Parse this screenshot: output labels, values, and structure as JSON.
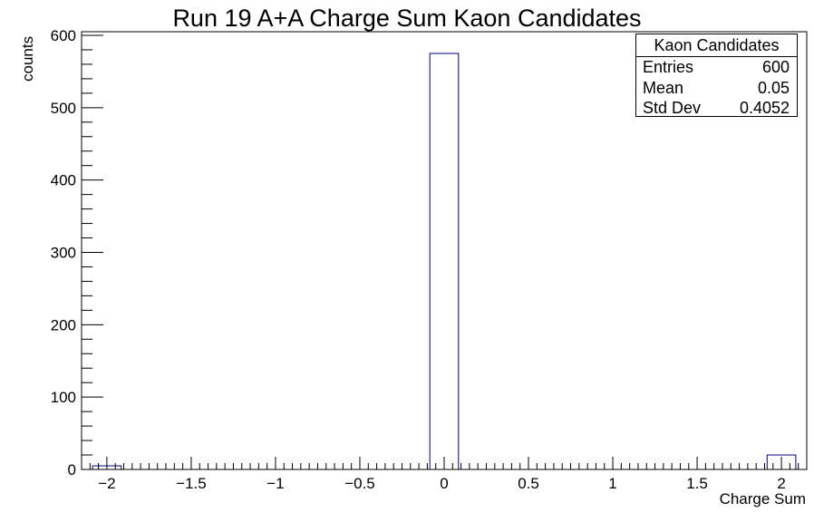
{
  "chart_data": {
    "type": "bar",
    "title": "Run 19 A+A Charge Sum Kaon Candidates",
    "xlabel": "Charge Sum",
    "ylabel": "counts",
    "xlim": [
      -2.15,
      2.15
    ],
    "ylim": [
      0,
      605
    ],
    "bin_width": 0.17,
    "x_tick_labels": [
      "-2",
      "-1.5",
      "-1",
      "-0.5",
      "0",
      "0.5",
      "1",
      "1.5",
      "2"
    ],
    "y_tick_labels": [
      "0",
      "100",
      "200",
      "300",
      "400",
      "500",
      "600"
    ],
    "series": [
      {
        "name": "Kaon Candidates",
        "x": [
          -2,
          0,
          2
        ],
        "values": [
          5,
          575,
          20
        ]
      }
    ],
    "grid": false,
    "bar_color": "#00007f",
    "bar_fill": "none"
  },
  "stats": {
    "title": "Kaon Candidates",
    "rows": [
      {
        "key": "Entries",
        "value": "600"
      },
      {
        "key": "Mean",
        "value": "0.05"
      },
      {
        "key": "Std Dev",
        "value": "0.4052"
      }
    ]
  }
}
